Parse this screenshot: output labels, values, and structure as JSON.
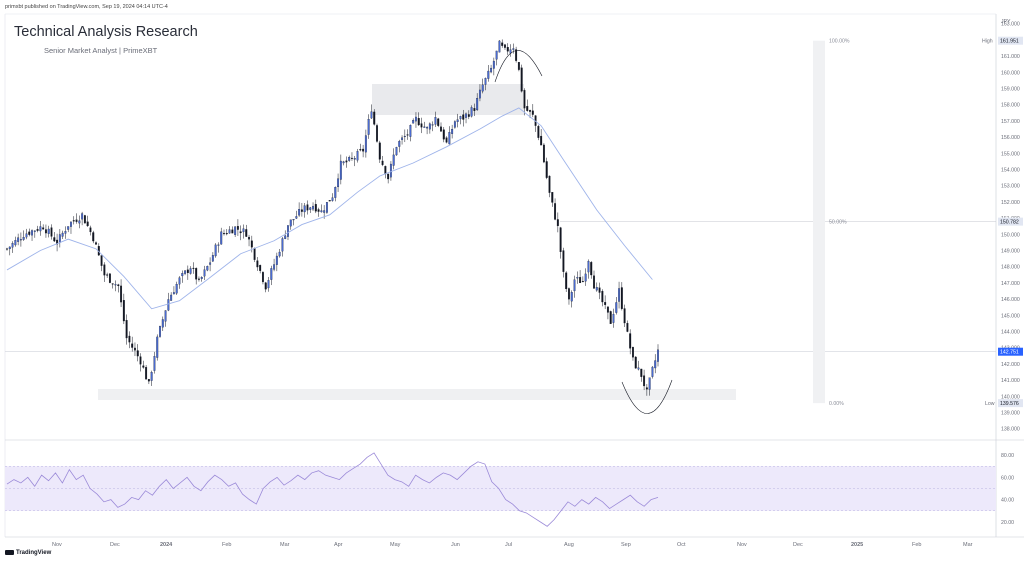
{
  "header": {
    "published": "primxbt published on TradingView.com, Sep 19, 2024 04:14 UTC-4",
    "title": "Technical Analysis Research",
    "subtitle": "Senior Market Analyst | PrimeXBT"
  },
  "footer": {
    "brand": "TradingView"
  },
  "chart_data": {
    "type": "candlestick",
    "currency": "JPY",
    "price_axis": {
      "ticks": [
        163,
        162,
        161,
        160,
        159,
        158,
        157,
        156,
        155,
        154,
        153,
        152,
        151,
        150,
        149,
        148,
        147,
        146,
        145,
        144,
        143,
        142,
        141,
        140,
        139,
        138
      ],
      "range": [
        137.3,
        163.6
      ],
      "labels": {
        "high": "High",
        "low": "Low",
        "high_value": "161.951",
        "low_value": "139.576",
        "mid_value": "150.782",
        "last_value": "142.751"
      }
    },
    "x_axis": {
      "ticks": [
        "Nov",
        "Dec",
        "2024",
        "Feb",
        "Mar",
        "Apr",
        "May",
        "Jun",
        "Jul",
        "Aug",
        "Sep",
        "Oct",
        "Nov",
        "Dec",
        "2025",
        "Feb",
        "Mar"
      ]
    },
    "key_points": [
      {
        "x": 0,
        "y": 149.1
      },
      {
        "x": 6,
        "y": 150.0
      },
      {
        "x": 13,
        "y": 150.5
      },
      {
        "x": 18,
        "y": 149.5
      },
      {
        "x": 22,
        "y": 150.6
      },
      {
        "x": 27,
        "y": 151.2
      },
      {
        "x": 31,
        "y": 149.8
      },
      {
        "x": 35,
        "y": 147.5
      },
      {
        "x": 40,
        "y": 146.8
      },
      {
        "x": 43,
        "y": 143.6
      },
      {
        "x": 48,
        "y": 142.2
      },
      {
        "x": 51,
        "y": 140.7
      },
      {
        "x": 54,
        "y": 143.5
      },
      {
        "x": 58,
        "y": 146.0
      },
      {
        "x": 62,
        "y": 147.2
      },
      {
        "x": 66,
        "y": 148.0
      },
      {
        "x": 69,
        "y": 147.0
      },
      {
        "x": 73,
        "y": 148.3
      },
      {
        "x": 77,
        "y": 150.0
      },
      {
        "x": 82,
        "y": 150.4
      },
      {
        "x": 86,
        "y": 150.1
      },
      {
        "x": 90,
        "y": 148.2
      },
      {
        "x": 93,
        "y": 146.8
      },
      {
        "x": 97,
        "y": 148.6
      },
      {
        "x": 101,
        "y": 150.6
      },
      {
        "x": 106,
        "y": 151.5
      },
      {
        "x": 110,
        "y": 151.8
      },
      {
        "x": 113,
        "y": 151.4
      },
      {
        "x": 117,
        "y": 152.4
      },
      {
        "x": 120,
        "y": 154.3
      },
      {
        "x": 124,
        "y": 154.6
      },
      {
        "x": 128,
        "y": 155.2
      },
      {
        "x": 131,
        "y": 157.8
      },
      {
        "x": 134,
        "y": 154.8
      },
      {
        "x": 137,
        "y": 153.5
      },
      {
        "x": 140,
        "y": 155.5
      },
      {
        "x": 144,
        "y": 156.2
      },
      {
        "x": 147,
        "y": 157.1
      },
      {
        "x": 151,
        "y": 156.5
      },
      {
        "x": 154,
        "y": 157.2
      },
      {
        "x": 158,
        "y": 155.6
      },
      {
        "x": 161,
        "y": 157.0
      },
      {
        "x": 164,
        "y": 157.2
      },
      {
        "x": 168,
        "y": 157.8
      },
      {
        "x": 171,
        "y": 159.2
      },
      {
        "x": 174,
        "y": 160.2
      },
      {
        "x": 177,
        "y": 161.7
      },
      {
        "x": 179,
        "y": 161.3
      },
      {
        "x": 182,
        "y": 161.6
      },
      {
        "x": 184,
        "y": 160.1
      },
      {
        "x": 186,
        "y": 157.8
      },
      {
        "x": 189,
        "y": 157.3
      },
      {
        "x": 192,
        "y": 155.5
      },
      {
        "x": 195,
        "y": 152.5
      },
      {
        "x": 198,
        "y": 150.4
      },
      {
        "x": 200,
        "y": 147.5
      },
      {
        "x": 202,
        "y": 145.8
      },
      {
        "x": 204,
        "y": 147.2
      },
      {
        "x": 207,
        "y": 147.1
      },
      {
        "x": 209,
        "y": 148.5
      },
      {
        "x": 211,
        "y": 146.9
      },
      {
        "x": 214,
        "y": 145.8
      },
      {
        "x": 217,
        "y": 144.6
      },
      {
        "x": 220,
        "y": 146.5
      },
      {
        "x": 223,
        "y": 143.8
      },
      {
        "x": 225,
        "y": 142.2
      },
      {
        "x": 228,
        "y": 141.3
      },
      {
        "x": 230,
        "y": 140.2
      },
      {
        "x": 232,
        "y": 141.6
      },
      {
        "x": 234,
        "y": 142.8
      }
    ],
    "moving_average": [
      [
        0,
        147.8
      ],
      [
        12,
        149.0
      ],
      [
        22,
        149.7
      ],
      [
        32,
        149.1
      ],
      [
        42,
        147.4
      ],
      [
        52,
        145.4
      ],
      [
        62,
        145.9
      ],
      [
        72,
        147.2
      ],
      [
        84,
        148.8
      ],
      [
        96,
        149.6
      ],
      [
        106,
        150.6
      ],
      [
        116,
        151.2
      ],
      [
        126,
        152.6
      ],
      [
        134,
        153.6
      ],
      [
        146,
        154.4
      ],
      [
        158,
        155.4
      ],
      [
        170,
        156.5
      ],
      [
        178,
        157.3
      ],
      [
        184,
        157.8
      ],
      [
        192,
        156.7
      ],
      [
        200,
        154.6
      ],
      [
        212,
        151.5
      ],
      [
        222,
        149.3
      ],
      [
        232,
        147.2
      ]
    ],
    "rsi": {
      "ticks": [
        80,
        60,
        40,
        20
      ],
      "range": [
        10,
        90
      ],
      "bands": [
        70,
        50,
        30
      ],
      "values": [
        54,
        58,
        55,
        60,
        52,
        62,
        57,
        64,
        55,
        67,
        58,
        62,
        50,
        45,
        38,
        40,
        33,
        36,
        42,
        40,
        48,
        44,
        52,
        58,
        50,
        55,
        60,
        52,
        48,
        56,
        62,
        58,
        52,
        55,
        45,
        40,
        36,
        50,
        56,
        60,
        53,
        57,
        62,
        58,
        64,
        66,
        62,
        60,
        58,
        64,
        68,
        72,
        78,
        82,
        72,
        62,
        58,
        56,
        52,
        62,
        58,
        55,
        60,
        64,
        62,
        58,
        64,
        70,
        74,
        72,
        56,
        50,
        40,
        36,
        30,
        28,
        24,
        20,
        16,
        22,
        30,
        38,
        34,
        40,
        36,
        42,
        38,
        32,
        36,
        40,
        44,
        38,
        34,
        40,
        42
      ]
    },
    "fibonacci": {
      "levels": [
        "100.00%",
        "50.00%",
        "0.00%"
      ]
    },
    "annotations": [
      "resistance zone",
      "support zone",
      "top arc",
      "bottom arc"
    ],
    "colors": {
      "up": "#4a6bd1",
      "down": "#131722",
      "ma": "#9fb4ea",
      "rsi": "#9b8ad8",
      "rsi_band": "#ede9fb",
      "last_price": "#2962ff"
    }
  }
}
